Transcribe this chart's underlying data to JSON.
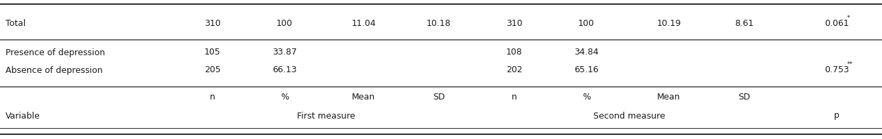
{
  "col_headers_row1_left": "Variable",
  "col_headers_row1_fm": "First measure",
  "col_headers_row1_sm": "Second measure",
  "col_headers_row1_p": "p",
  "col_headers_row2": [
    "n",
    "%",
    "Mean",
    "SD",
    "n",
    "%",
    "Mean",
    "SD"
  ],
  "rows": [
    [
      "Absence of depression",
      "205",
      "66.13",
      "",
      "",
      "202",
      "65.16",
      "",
      "",
      "0.753",
      "**"
    ],
    [
      "Presence of depression",
      "105",
      "33.87",
      "",
      "",
      "108",
      "34.84",
      "",
      "",
      "",
      ""
    ],
    [
      "Total",
      "310",
      "100",
      "11.04",
      "10.18",
      "310",
      "100",
      "10.19",
      "8.61",
      "0.061",
      "*"
    ]
  ],
  "font_family": "DejaVu Sans",
  "font_size": 9.0,
  "text_color": "#1a1a1a",
  "line_color": "#333333",
  "bg_color": "#ffffff",
  "fig_width": 12.86,
  "fig_height": 2.04,
  "dpi": 100
}
